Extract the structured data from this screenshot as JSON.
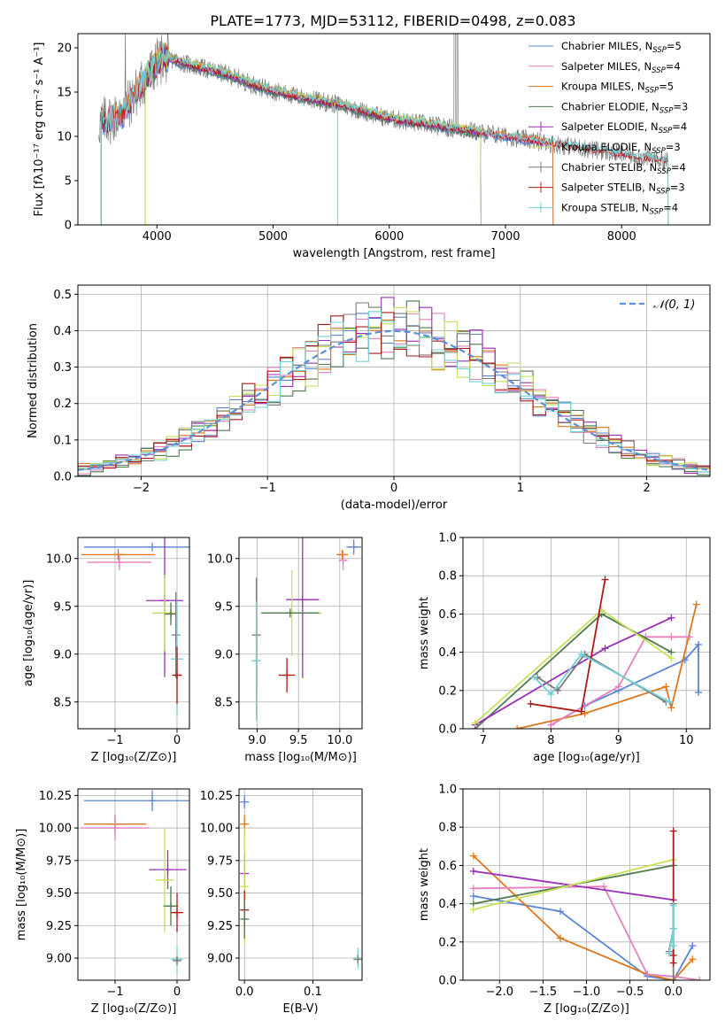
{
  "figure": {
    "title": "PLATE=1773, MJD=53112, FIBERID=0498, z=0.083"
  },
  "colors": {
    "Chabrier MILES": "#5b84d6",
    "Salpeter MILES": "#e57fbd",
    "Kroupa MILES": "#e0761a",
    "Chabrier ELODIE": "#4e7a4e",
    "Salpeter ELODIE": "#9a2fb8",
    "Kroupa ELODIE": "#c6e05a",
    "Chabrier STELIB": "#7a7a7a",
    "Salpeter STELIB": "#b01818",
    "Kroupa STELIB": "#72d1d6",
    "normal": "#5b8fd6"
  },
  "chart_data": [
    {
      "id": "spectrum",
      "type": "line",
      "xlabel": "wavelength [Angstrom, rest frame]",
      "ylabel": "Flux [fλ10⁻¹⁷ erg cm⁻² s⁻¹ A⁻¹]",
      "xlim": [
        3320,
        8760
      ],
      "ylim": [
        0,
        21.6
      ],
      "xticks": [
        4000,
        5000,
        6000,
        7000,
        8000
      ],
      "yticks": [
        0,
        5,
        10,
        15,
        20
      ],
      "legend_position": "top-right",
      "legend": [
        "Chabrier MILES, N_SSP=5",
        "Salpeter MILES, N_SSP=4",
        "Kroupa MILES, N_SSP=5",
        "Chabrier ELODIE, N_SSP=3",
        "Salpeter ELODIE, N_SSP=4",
        "Kroupa ELODIE, N_SSP=3",
        "Chabrier STELIB, N_SSP=4",
        "Salpeter STELIB, N_SSP=3",
        "Kroupa STELIB, N_SSP=4"
      ],
      "continuum_points": [
        [
          3500,
          11.5
        ],
        [
          3700,
          12.5
        ],
        [
          3900,
          16.5
        ],
        [
          4050,
          19
        ],
        [
          4300,
          18
        ],
        [
          4600,
          17
        ],
        [
          4900,
          15.5
        ],
        [
          5200,
          14.5
        ],
        [
          5600,
          13.5
        ],
        [
          6000,
          12
        ],
        [
          6500,
          11
        ],
        [
          7000,
          10
        ],
        [
          7500,
          9
        ],
        [
          8000,
          8
        ],
        [
          8400,
          7.2
        ]
      ]
    },
    {
      "id": "residuals",
      "type": "histogram",
      "xlabel": "(data-model)/error",
      "ylabel": "Normed distribution",
      "xlim": [
        -2.5,
        2.5
      ],
      "ylim": [
        0,
        0.525
      ],
      "xticks": [
        -2,
        -1,
        0,
        1,
        2
      ],
      "yticks": [
        0.0,
        0.1,
        0.2,
        0.3,
        0.4,
        0.5
      ],
      "legend_position": "top-right",
      "legend": [
        "𝒩(0, 1)"
      ],
      "bin_width": 0.1
    },
    {
      "id": "age_vs_Z",
      "type": "errorbar",
      "xlabel": "Z [log₁₀(Z/Z⊙)]",
      "ylabel": "age  [log₁₀(age/yr)]",
      "xlim": [
        -1.6,
        0.2
      ],
      "ylim": [
        8.22,
        10.22
      ],
      "xticks": [
        -1,
        0
      ],
      "yticks": [
        8.5,
        9.0,
        9.5,
        10.0
      ],
      "points": [
        {
          "model": "Chabrier MILES",
          "x": -0.4,
          "xerr": 1.1,
          "y": 10.12,
          "yerr": 0
        },
        {
          "model": "Kroupa MILES",
          "x": -0.95,
          "xerr": 0.6,
          "y": 10.04,
          "yerr": 0.06
        },
        {
          "model": "Salpeter MILES",
          "x": -0.93,
          "xerr": 0.52,
          "y": 9.96,
          "yerr": 0.08
        },
        {
          "model": "Salpeter ELODIE",
          "x": -0.2,
          "xerr": 0.3,
          "y": 9.56,
          "yerr": 0.8
        },
        {
          "model": "Kroupa ELODIE",
          "x": -0.2,
          "xerr": 0.2,
          "y": 9.43,
          "yerr": 0.4
        },
        {
          "model": "Chabrier ELODIE",
          "x": -0.1,
          "xerr": 0.1,
          "y": 9.42,
          "yerr": 0.12
        },
        {
          "model": "Chabrier STELIB",
          "x": -0.02,
          "xerr": 0.02,
          "y": 9.2,
          "yerr": 0.45
        },
        {
          "model": "Kroupa STELIB",
          "x": 0.0,
          "xerr": 0.1,
          "y": 8.95,
          "yerr": 0.6
        },
        {
          "model": "Salpeter STELIB",
          "x": 0.0,
          "xerr": 0.08,
          "y": 8.78,
          "yerr": 0.3
        }
      ]
    },
    {
      "id": "age_vs_mass",
      "type": "errorbar",
      "xlabel": "mass [log₁₀(M/M⊙)]",
      "ylabel": "",
      "xlim": [
        8.78,
        10.27
      ],
      "ylim": [
        8.22,
        10.22
      ],
      "xticks": [
        9.0,
        9.5,
        10.0
      ],
      "yticks": [
        8.5,
        9.0,
        9.5,
        10.0
      ],
      "points": [
        {
          "model": "Chabrier MILES",
          "x": 10.17,
          "xerr": 0.09,
          "y": 10.12,
          "yerr": 0.08
        },
        {
          "model": "Kroupa MILES",
          "x": 10.03,
          "xerr": 0.07,
          "y": 10.04,
          "yerr": 0.05
        },
        {
          "model": "Salpeter MILES",
          "x": 10.04,
          "xerr": 0.04,
          "y": 9.98,
          "yerr": 0.1
        },
        {
          "model": "Salpeter ELODIE",
          "x": 9.55,
          "xerr": 0.2,
          "y": 9.57,
          "yerr": 0.82
        },
        {
          "model": "Kroupa ELODIE",
          "x": 9.42,
          "xerr": 0.36,
          "y": 9.43,
          "yerr": 0.45
        },
        {
          "model": "Chabrier ELODIE",
          "x": 9.4,
          "xerr": 0.35,
          "y": 9.43,
          "yerr": 0.02
        },
        {
          "model": "Salpeter STELIB",
          "x": 9.36,
          "xerr": 0.1,
          "y": 8.78,
          "yerr": 0.18
        },
        {
          "model": "Chabrier STELIB",
          "x": 8.99,
          "xerr": 0.02,
          "y": 9.2,
          "yerr": 0.6
        },
        {
          "model": "Kroupa STELIB",
          "x": 8.99,
          "xerr": 0.05,
          "y": 8.93,
          "yerr": 0.62
        }
      ]
    },
    {
      "id": "weight_vs_age",
      "type": "line",
      "xlabel": "age  [log₁₀(age/yr)]",
      "ylabel": "mass weight",
      "xlim": [
        6.7,
        10.35
      ],
      "ylim": [
        0,
        1.0
      ],
      "xticks": [
        7,
        8,
        9,
        10
      ],
      "yticks": [
        0.0,
        0.2,
        0.4,
        0.6,
        0.8,
        1.0
      ],
      "series": [
        {
          "model": "Chabrier MILES",
          "x": [
            8.0,
            8.5,
            9.0,
            9.98,
            10.18,
            10.18
          ],
          "y": [
            0.02,
            0.12,
            0.2,
            0.36,
            0.44,
            0.19
          ]
        },
        {
          "model": "Kroupa MILES",
          "x": [
            7.5,
            8.5,
            9.7,
            9.78,
            10.15
          ],
          "y": [
            0.0,
            0.08,
            0.22,
            0.11,
            0.65
          ]
        },
        {
          "model": "Salpeter MILES",
          "x": [
            8.0,
            9.0,
            9.4,
            9.78,
            10.05
          ],
          "y": [
            0.02,
            0.22,
            0.48,
            0.48,
            0.48
          ]
        },
        {
          "model": "Chabrier ELODIE",
          "x": [
            6.88,
            8.75,
            9.78
          ],
          "y": [
            0.0,
            0.6,
            0.4
          ]
        },
        {
          "model": "Salpeter ELODIE",
          "x": [
            6.88,
            8.8,
            9.78
          ],
          "y": [
            0.02,
            0.42,
            0.58
          ]
        },
        {
          "model": "Kroupa ELODIE",
          "x": [
            6.88,
            8.75,
            9.78
          ],
          "y": [
            0.03,
            0.62,
            0.37
          ]
        },
        {
          "model": "Chabrier STELIB",
          "x": [
            7.8,
            8.1,
            8.5,
            9.7
          ],
          "y": [
            0.27,
            0.2,
            0.39,
            0.14
          ]
        },
        {
          "model": "Salpeter STELIB",
          "x": [
            7.7,
            8.45,
            8.8
          ],
          "y": [
            0.13,
            0.09,
            0.78
          ]
        },
        {
          "model": "Kroupa STELIB",
          "x": [
            7.75,
            8.0,
            8.45,
            9.75
          ],
          "y": [
            0.27,
            0.18,
            0.39,
            0.14
          ]
        }
      ]
    },
    {
      "id": "mass_vs_Z",
      "type": "errorbar",
      "xlabel": "Z [log₁₀(Z/Z⊙)]",
      "ylabel": "mass [log₁₀(M/M⊙)]",
      "xlim": [
        -1.6,
        0.2
      ],
      "ylim": [
        8.83,
        10.3
      ],
      "xticks": [
        -1,
        0
      ],
      "yticks": [
        9.0,
        9.25,
        9.5,
        9.75,
        10.0,
        10.25
      ],
      "points": [
        {
          "model": "Chabrier MILES",
          "x": -0.4,
          "xerr": 1.1,
          "y": 10.21,
          "yerr": 0.08
        },
        {
          "model": "Kroupa MILES",
          "x": -1.0,
          "xerr": 0.5,
          "y": 10.03,
          "yerr": 0.07
        },
        {
          "model": "Salpeter MILES",
          "x": -1.0,
          "xerr": 0.55,
          "y": 10.0,
          "yerr": 0.1
        },
        {
          "model": "Salpeter ELODIE",
          "x": -0.15,
          "xerr": 0.3,
          "y": 9.68,
          "yerr": 0.15
        },
        {
          "model": "Kroupa ELODIE",
          "x": -0.2,
          "xerr": 0.15,
          "y": 9.6,
          "yerr": 0.4
        },
        {
          "model": "Chabrier ELODIE",
          "x": -0.1,
          "xerr": 0.12,
          "y": 9.4,
          "yerr": 0.15
        },
        {
          "model": "Salpeter STELIB",
          "x": 0.0,
          "xerr": 0.1,
          "y": 9.35,
          "yerr": 0.15
        },
        {
          "model": "Kroupa STELIB",
          "x": 0.0,
          "xerr": 0.1,
          "y": 8.99,
          "yerr": 0.1
        },
        {
          "model": "Chabrier STELIB",
          "x": 0.0,
          "xerr": 0.03,
          "y": 8.98,
          "yerr": 0.02
        }
      ]
    },
    {
      "id": "mass_vs_EBV",
      "type": "errorbar",
      "xlabel": "E(B-V)",
      "ylabel": "",
      "xlim": [
        -0.008,
        0.172
      ],
      "ylim": [
        8.83,
        10.3
      ],
      "xticks": [
        0.0,
        0.1
      ],
      "yticks": [
        9.0,
        9.25,
        9.5,
        9.75,
        10.0,
        10.25
      ],
      "points": [
        {
          "model": "Chabrier MILES",
          "x": 0.0,
          "xerr": 0,
          "y": 10.2,
          "yerr": 0.05
        },
        {
          "model": "Kroupa MILES",
          "x": 0.0,
          "xerr": 0,
          "y": 10.03,
          "yerr": 0.07
        },
        {
          "model": "Salpeter ELODIE",
          "x": 0.0,
          "xerr": 0,
          "y": 9.65,
          "yerr": 0.15
        },
        {
          "model": "Kroupa ELODIE",
          "x": 0.0,
          "xerr": 0,
          "y": 9.55,
          "yerr": 0.45
        },
        {
          "model": "Salpeter STELIB",
          "x": 0.0,
          "xerr": 0,
          "y": 9.37,
          "yerr": 0.15
        },
        {
          "model": "Chabrier ELODIE",
          "x": 0.0,
          "xerr": 0,
          "y": 9.3,
          "yerr": 0.15
        },
        {
          "model": "Kroupa STELIB",
          "x": 0.166,
          "xerr": 0,
          "y": 9.0,
          "yerr": 0.08
        },
        {
          "model": "Chabrier STELIB",
          "x": 0.166,
          "xerr": 0,
          "y": 8.99,
          "yerr": 0.02
        }
      ]
    },
    {
      "id": "weight_vs_Z",
      "type": "line",
      "xlabel": "Z [log₁₀(Z/Z⊙)]",
      "ylabel": "mass weight",
      "xlim": [
        -2.42,
        0.42
      ],
      "ylim": [
        0,
        1.0
      ],
      "xticks": [
        -2.0,
        -1.5,
        -1.0,
        -0.5,
        0.0
      ],
      "yticks": [
        0.0,
        0.2,
        0.4,
        0.6,
        0.8,
        1.0
      ],
      "series": [
        {
          "model": "Chabrier MILES",
          "x": [
            -2.3,
            -1.3,
            -0.3,
            0.0,
            0.22
          ],
          "y": [
            0.44,
            0.36,
            0.02,
            0.0,
            0.18
          ]
        },
        {
          "model": "Kroupa MILES",
          "x": [
            -2.3,
            -1.3,
            -0.3,
            0.0,
            0.22
          ],
          "y": [
            0.65,
            0.22,
            0.03,
            0.0,
            0.11
          ]
        },
        {
          "model": "Salpeter MILES",
          "x": [
            -2.3,
            -0.8,
            -0.3,
            0.0,
            0.3
          ],
          "y": [
            0.48,
            0.49,
            0.03,
            0.02,
            0.0
          ]
        },
        {
          "model": "Chabrier ELODIE",
          "x": [
            -2.3,
            0.0
          ],
          "y": [
            0.4,
            0.6
          ]
        },
        {
          "model": "Salpeter ELODIE",
          "x": [
            -2.3,
            0.0
          ],
          "y": [
            0.57,
            0.42
          ]
        },
        {
          "model": "Kroupa ELODIE",
          "x": [
            -2.3,
            0.0
          ],
          "y": [
            0.37,
            0.63
          ]
        },
        {
          "model": "Chabrier STELIB",
          "x": [
            -0.05,
            0.0,
            0.0,
            0.0
          ],
          "y": [
            0.15,
            0.27,
            0.4,
            0.0
          ]
        },
        {
          "model": "Salpeter STELIB",
          "x": [
            0.0,
            0.0,
            0.0
          ],
          "y": [
            0.78,
            0.09,
            0.13
          ]
        },
        {
          "model": "Kroupa STELIB",
          "x": [
            -0.05,
            0.0,
            0.0,
            0.0
          ],
          "y": [
            0.14,
            0.27,
            0.39,
            0.18
          ]
        }
      ]
    }
  ]
}
